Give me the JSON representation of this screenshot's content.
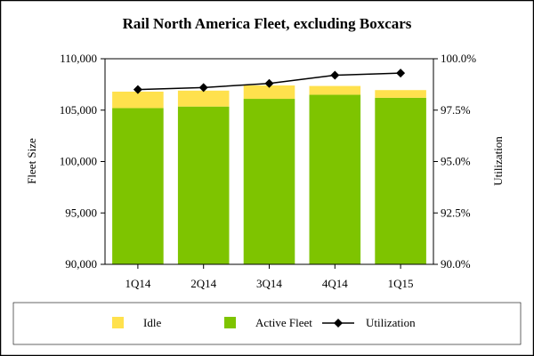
{
  "chart_data": {
    "type": "bar",
    "title": "Rail North America Fleet, excluding Boxcars",
    "categories": [
      "1Q14",
      "2Q14",
      "3Q14",
      "4Q14",
      "1Q15"
    ],
    "series": [
      {
        "name": "Active Fleet",
        "kind": "stacked-bar",
        "color": "#7ec400",
        "values": [
          105200,
          105350,
          106100,
          106500,
          106200
        ]
      },
      {
        "name": "Idle",
        "kind": "stacked-bar",
        "color": "#ffe14d",
        "values": [
          1600,
          1550,
          1300,
          850,
          750
        ]
      },
      {
        "name": "Utilization",
        "kind": "line",
        "axis": "right",
        "color": "#000000",
        "values": [
          98.5,
          98.6,
          98.8,
          99.2,
          99.3
        ]
      }
    ],
    "ylabel": "Fleet Size",
    "ylim": [
      90000,
      110000
    ],
    "yticks": [
      "90,000",
      "95,000",
      "100,000",
      "105,000",
      "110,000"
    ],
    "y2label": "Utilization",
    "y2lim": [
      90.0,
      100.0
    ],
    "y2ticks": [
      "90.0%",
      "92.5%",
      "95.0%",
      "97.5%",
      "100.0%"
    ],
    "legend": {
      "placement": "bottom",
      "items": [
        {
          "label": "Idle",
          "color": "#ffe14d",
          "marker": "square"
        },
        {
          "label": "Active Fleet",
          "color": "#7ec400",
          "marker": "square"
        },
        {
          "label": "Utilization",
          "color": "#000000",
          "marker": "line-diamond"
        }
      ]
    },
    "grid": false
  }
}
